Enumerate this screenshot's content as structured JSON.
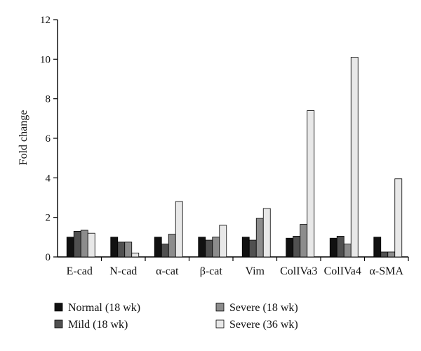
{
  "chart_data": {
    "type": "bar",
    "title": "",
    "xlabel": "",
    "ylabel": "Fold change",
    "ylim": [
      0,
      12
    ],
    "yticks": [
      0,
      2,
      4,
      6,
      8,
      10,
      12
    ],
    "grid": false,
    "legend_position": "bottom",
    "categories": [
      "E-cad",
      "N-cad",
      "α-cat",
      "β-cat",
      "Vim",
      "ColIVa3",
      "ColIVa4",
      "α-SMA"
    ],
    "series": [
      {
        "name": "Normal (18 wk)",
        "color": "#111111",
        "values": [
          1.0,
          1.0,
          1.0,
          1.0,
          1.0,
          0.95,
          0.95,
          1.0
        ]
      },
      {
        "name": "Mild (18 wk)",
        "color": "#505050",
        "values": [
          1.3,
          0.75,
          0.65,
          0.85,
          0.85,
          1.05,
          1.05,
          0.25
        ]
      },
      {
        "name": "Severe (18 wk)",
        "color": "#8c8c8c",
        "values": [
          1.35,
          0.75,
          1.15,
          1.0,
          1.95,
          1.65,
          0.65,
          0.25
        ]
      },
      {
        "name": "Severe (36 wk)",
        "color": "#e8e8e8",
        "values": [
          1.2,
          0.2,
          2.8,
          1.6,
          2.45,
          7.4,
          10.1,
          3.95
        ]
      }
    ]
  }
}
